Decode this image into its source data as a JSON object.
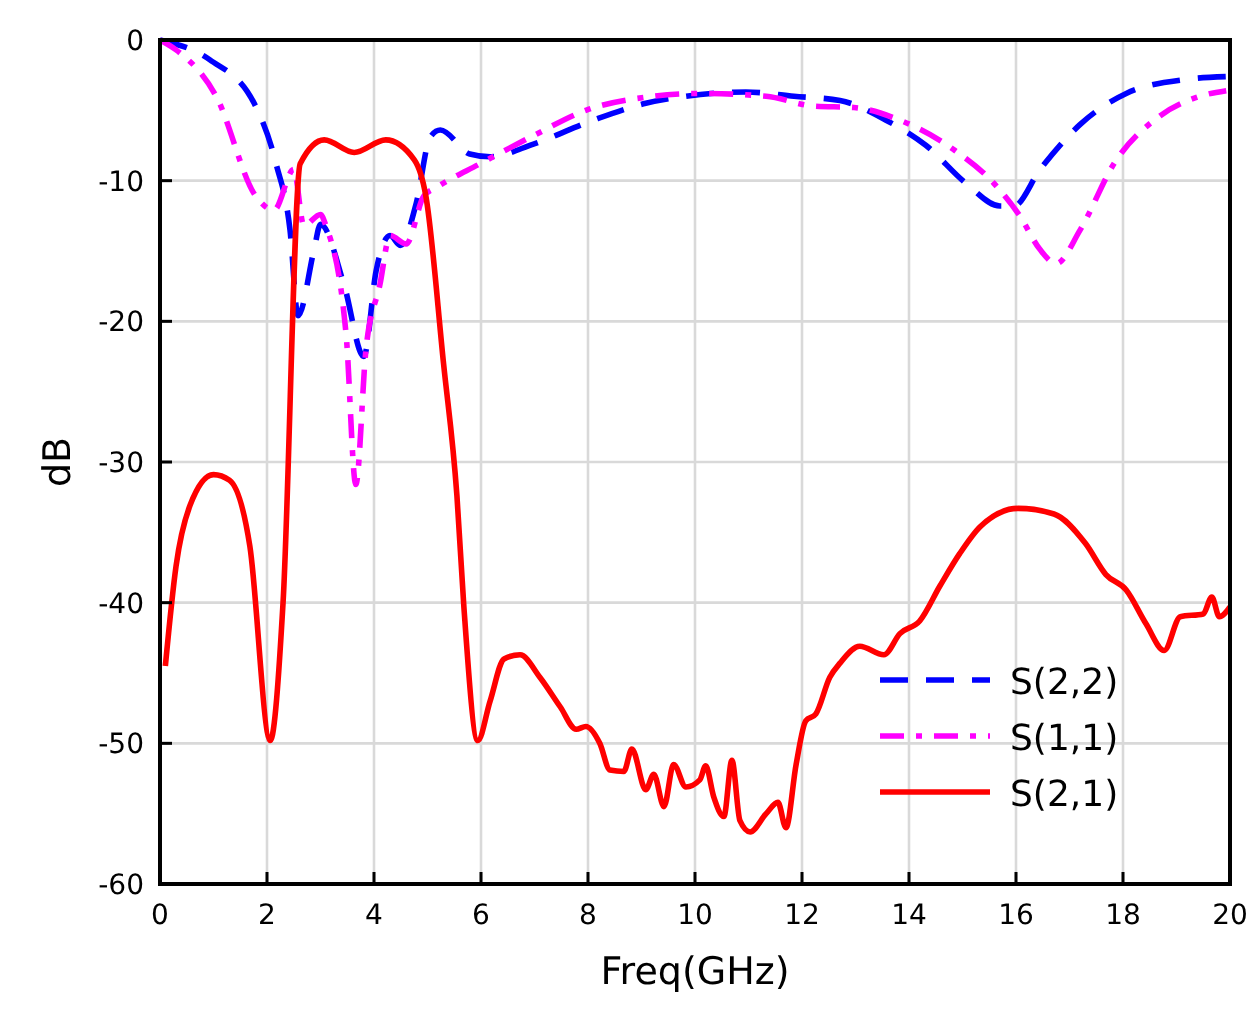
{
  "chart_data": {
    "type": "line",
    "xlabel": "Freq(GHz)",
    "ylabel": "dB",
    "xlim": [
      0,
      20
    ],
    "ylim": [
      -60,
      0
    ],
    "xticks": [
      0,
      2,
      4,
      6,
      8,
      10,
      12,
      14,
      16,
      18,
      20
    ],
    "yticks": [
      -60,
      -50,
      -40,
      -30,
      -20,
      -10,
      0
    ],
    "grid": true,
    "legend": "bottom right",
    "marker": "none",
    "series": [
      {
        "name": "S(2,2)",
        "color": "#0000ff",
        "line_style": "dashed",
        "x": [
          0,
          0.93,
          1.76,
          2.17,
          2.43,
          2.58,
          2.88,
          3.0,
          3.44,
          3.81,
          4.04,
          4.3,
          4.49,
          4.79,
          5.05,
          5.24,
          5.79,
          6.17,
          6.98,
          8.1,
          9.08,
          9.83,
          10.95,
          11.85,
          12.71,
          13.57,
          14.32,
          15.07,
          15.7,
          15.96,
          16.45,
          17.2,
          18.06,
          19.18,
          19.93
        ],
        "values": [
          0,
          -1.4,
          -4.5,
          -8.8,
          -13.5,
          -19.6,
          -14.9,
          -13.1,
          -17.4,
          -22.5,
          -16.4,
          -13.9,
          -14.6,
          -11.6,
          -6.9,
          -6.4,
          -8.1,
          -8.3,
          -7.4,
          -5.7,
          -4.5,
          -4,
          -3.7,
          -4,
          -4.3,
          -5.7,
          -7.5,
          -10.2,
          -11.8,
          -11.8,
          -9.2,
          -6,
          -3.8,
          -2.8,
          -2.6
        ]
      },
      {
        "name": "S(1,1)",
        "color": "#ff00ff",
        "line_style": "dashdot",
        "x": [
          0,
          0.3,
          1.05,
          1.79,
          2.13,
          2.5,
          2.69,
          3.0,
          3.1,
          3.48,
          3.66,
          3.85,
          4.11,
          4.3,
          4.6,
          4.93,
          5.16,
          5.98,
          6.98,
          7.96,
          9.23,
          10.09,
          11.33,
          12.22,
          12.97,
          13.83,
          14.84,
          15.59,
          16.07,
          16.45,
          16.75,
          17.2,
          17.83,
          18.69,
          19.44,
          19.93
        ],
        "values": [
          0,
          -0.7,
          -4,
          -11.1,
          -12.1,
          -9.2,
          -13.2,
          -12.4,
          -13.2,
          -21,
          -31.6,
          -22,
          -17.4,
          -13.9,
          -14.5,
          -11.1,
          -10.5,
          -8.8,
          -6.8,
          -5,
          -4,
          -3.8,
          -4,
          -4.7,
          -4.8,
          -5.7,
          -7.8,
          -10.2,
          -12.5,
          -14.9,
          -15.9,
          -13.5,
          -8.8,
          -5.4,
          -4,
          -3.6
        ]
      },
      {
        "name": "S(2,1)",
        "color": "#ff0000",
        "line_style": "solid",
        "x": [
          0.1,
          0.3,
          0.56,
          1.0,
          1.3,
          1.68,
          2.06,
          2.3,
          2.62,
          3.07,
          3.63,
          4.22,
          4.75,
          4.97,
          5.3,
          5.55,
          5.68,
          5.94,
          6.17,
          6.43,
          6.73,
          7.1,
          7.48,
          7.78,
          7.96,
          8.22,
          8.41,
          8.67,
          8.82,
          9.08,
          9.23,
          9.42,
          9.6,
          9.83,
          10.09,
          10.2,
          10.35,
          10.54,
          10.69,
          10.84,
          11.03,
          11.33,
          11.55,
          11.7,
          11.89,
          12.07,
          12.26,
          12.52,
          12.71,
          13.08,
          13.53,
          13.83,
          14.2,
          14.58,
          14.95,
          15.33,
          16.04,
          16.71,
          17.3,
          17.68,
          18.06,
          18.43,
          18.77,
          19.07,
          19.5,
          19.66,
          19.8,
          20
        ],
        "values": [
          -44.5,
          -37.4,
          -33.1,
          -30.9,
          -31.3,
          -36,
          -49.8,
          -40,
          -8.8,
          -7.1,
          -8,
          -7.1,
          -8.5,
          -11.1,
          -23,
          -32.4,
          -40.3,
          -49.8,
          -47,
          -44,
          -43.7,
          -45.3,
          -47.4,
          -49,
          -48.8,
          -50,
          -51.9,
          -52,
          -50.4,
          -53.3,
          -52.2,
          -54.5,
          -51.5,
          -53.1,
          -52.6,
          -51.6,
          -53.8,
          -55.2,
          -51.2,
          -55.5,
          -56.3,
          -55,
          -54.2,
          -56,
          -51.5,
          -48.4,
          -47.9,
          -45.3,
          -44.3,
          -43.1,
          -43.7,
          -42.2,
          -41.3,
          -38.8,
          -36.5,
          -34.6,
          -33.3,
          -33.7,
          -35.8,
          -38,
          -39.1,
          -41.5,
          -43.4,
          -41,
          -40.8,
          -39.6,
          -41,
          -40.3
        ]
      }
    ]
  }
}
